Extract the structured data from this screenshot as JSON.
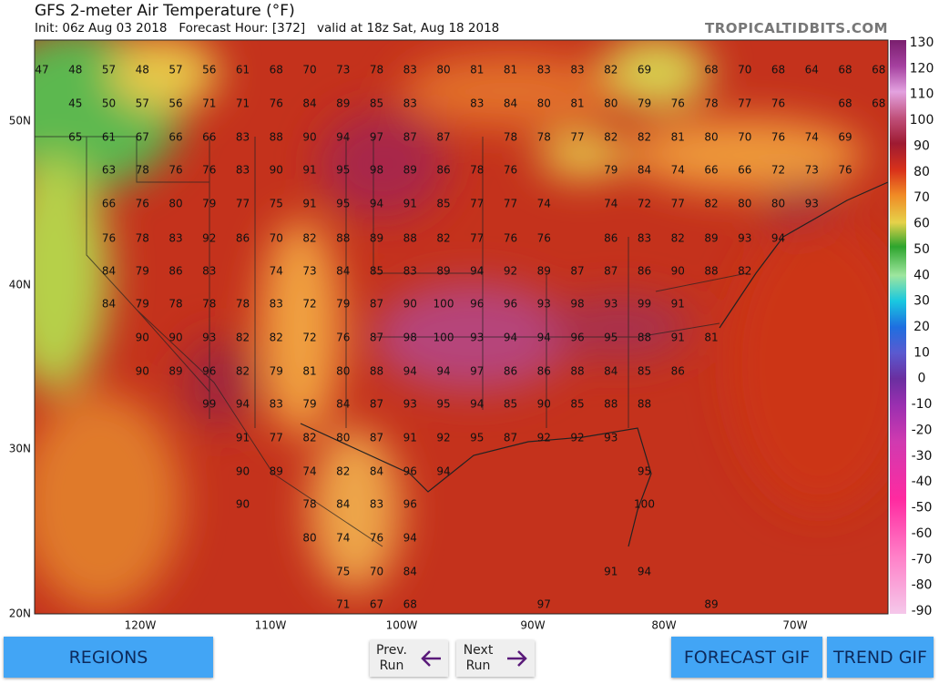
{
  "header": {
    "title": "GFS 2-meter Air Temperature (°F)",
    "subtitle": "Init: 06z Aug 03 2018   Forecast Hour: [372]   valid at 18z Sat, Aug 18 2018",
    "site": "TROPICALTIDBITS.COM"
  },
  "map": {
    "lat_labels": [
      "50N",
      "40N",
      "30N",
      "20N"
    ],
    "lon_labels": [
      "120W",
      "110W",
      "100W",
      "90W",
      "80W",
      "70W"
    ],
    "colorbar_labels": [
      "130",
      "120",
      "110",
      "100",
      "90",
      "80",
      "70",
      "60",
      "50",
      "40",
      "30",
      "20",
      "10",
      "0",
      "-10",
      "-20",
      "-30",
      "-40",
      "-50",
      "-60",
      "-70",
      "-80",
      "-90"
    ],
    "rows": [
      [
        47,
        48,
        57,
        48,
        57,
        56,
        61,
        68,
        70,
        73,
        78,
        83,
        80,
        81,
        81,
        83,
        83,
        82,
        69,
        null,
        68,
        70,
        68,
        64,
        68,
        68
      ],
      [
        null,
        45,
        50,
        57,
        56,
        71,
        71,
        76,
        84,
        89,
        85,
        83,
        null,
        83,
        84,
        80,
        81,
        80,
        79,
        76,
        78,
        77,
        76,
        null,
        68,
        68
      ],
      [
        null,
        65,
        61,
        67,
        66,
        66,
        83,
        88,
        90,
        94,
        97,
        87,
        87,
        null,
        78,
        78,
        77,
        82,
        82,
        81,
        80,
        70,
        76,
        74,
        69,
        null
      ],
      [
        null,
        null,
        63,
        78,
        76,
        76,
        83,
        90,
        91,
        95,
        98,
        89,
        86,
        78,
        76,
        null,
        null,
        79,
        84,
        74,
        66,
        66,
        72,
        73,
        76,
        null
      ],
      [
        null,
        null,
        66,
        76,
        80,
        79,
        77,
        75,
        91,
        95,
        94,
        91,
        85,
        77,
        77,
        74,
        null,
        74,
        72,
        77,
        82,
        80,
        80,
        93,
        null,
        null
      ],
      [
        null,
        null,
        76,
        78,
        83,
        92,
        86,
        70,
        82,
        88,
        89,
        88,
        82,
        77,
        76,
        76,
        null,
        86,
        83,
        82,
        89,
        93,
        94,
        null,
        null,
        null
      ],
      [
        null,
        null,
        84,
        79,
        86,
        83,
        null,
        74,
        73,
        84,
        85,
        83,
        89,
        94,
        92,
        89,
        87,
        87,
        86,
        90,
        88,
        82,
        null,
        null,
        null,
        null
      ],
      [
        null,
        null,
        84,
        79,
        78,
        78,
        78,
        83,
        72,
        79,
        87,
        90,
        100,
        96,
        96,
        93,
        98,
        93,
        99,
        91,
        null,
        null,
        null,
        null,
        null,
        null
      ],
      [
        null,
        null,
        null,
        90,
        90,
        93,
        82,
        82,
        72,
        76,
        87,
        98,
        100,
        93,
        94,
        94,
        96,
        95,
        88,
        91,
        81,
        null,
        null,
        null,
        null,
        null
      ],
      [
        null,
        null,
        null,
        90,
        89,
        96,
        82,
        79,
        81,
        80,
        88,
        94,
        94,
        97,
        86,
        86,
        88,
        84,
        85,
        86,
        null,
        null,
        null,
        null,
        null,
        null
      ],
      [
        null,
        null,
        null,
        null,
        null,
        99,
        94,
        83,
        79,
        84,
        87,
        93,
        95,
        94,
        85,
        90,
        85,
        88,
        88,
        null,
        null,
        null,
        null,
        null,
        null,
        null
      ],
      [
        null,
        null,
        null,
        null,
        null,
        null,
        91,
        77,
        82,
        80,
        87,
        91,
        92,
        95,
        87,
        92,
        92,
        93,
        null,
        null,
        null,
        null,
        null,
        null,
        null,
        null
      ],
      [
        null,
        null,
        null,
        null,
        null,
        null,
        90,
        89,
        74,
        82,
        84,
        96,
        94,
        null,
        null,
        null,
        null,
        null,
        95,
        null,
        null,
        null,
        null,
        null,
        null,
        null
      ],
      [
        null,
        null,
        null,
        null,
        null,
        null,
        90,
        null,
        78,
        84,
        83,
        96,
        null,
        null,
        null,
        null,
        null,
        null,
        100,
        null,
        null,
        null,
        null,
        null,
        null,
        null
      ],
      [
        null,
        null,
        null,
        null,
        null,
        null,
        null,
        null,
        80,
        74,
        76,
        94,
        null,
        null,
        null,
        null,
        null,
        null,
        null,
        null,
        null,
        null,
        null,
        null,
        null,
        null
      ],
      [
        null,
        null,
        null,
        null,
        null,
        null,
        null,
        null,
        null,
        75,
        70,
        84,
        null,
        null,
        null,
        null,
        null,
        91,
        94,
        null,
        null,
        null,
        null,
        null,
        null,
        null
      ],
      [
        null,
        null,
        null,
        null,
        null,
        null,
        null,
        null,
        null,
        71,
        67,
        68,
        null,
        null,
        null,
        97,
        null,
        null,
        null,
        null,
        89,
        null,
        null,
        null,
        null,
        null
      ]
    ]
  },
  "buttons": {
    "regions": "REGIONS",
    "prev_run": "Prev. Run",
    "next_run": "Next Run",
    "forecast_gif": "FORECAST GIF",
    "trend_gif": "TREND GIF"
  }
}
